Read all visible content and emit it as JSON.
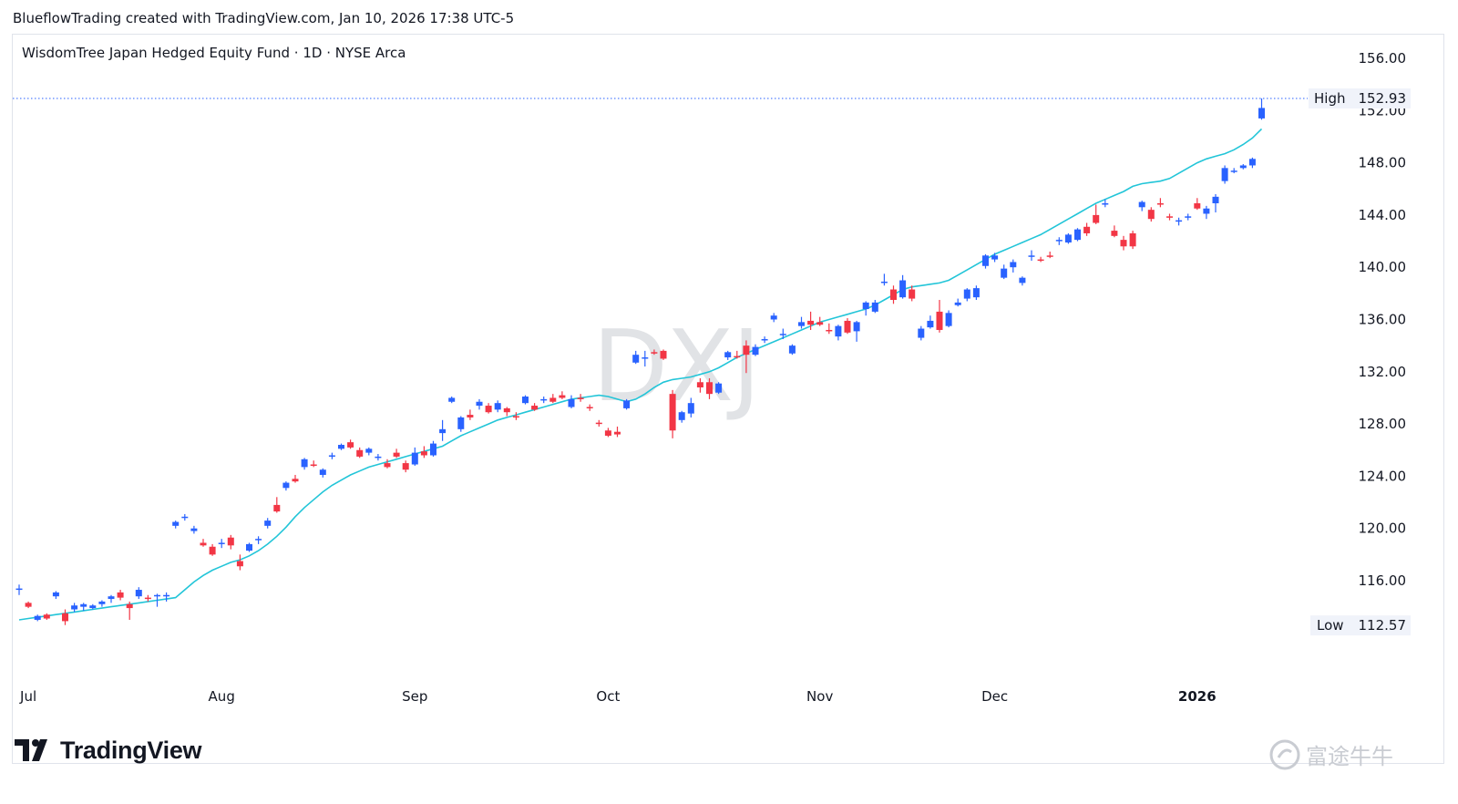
{
  "header": {
    "text": "BlueflowTrading created with TradingView.com, Jan 10, 2026 17:38 UTC-5"
  },
  "symbol": {
    "title": "WisdomTree Japan Hedged Equity Fund · 1D · NYSE Arca",
    "ticker": "DXJ"
  },
  "branding": {
    "logo_text": "TradingView",
    "watermark_text": "富途牛牛"
  },
  "colors": {
    "up": "#2962ff",
    "down": "#f23645",
    "ma": "#22c5d8",
    "grid_text": "#131722"
  },
  "chart_data": {
    "type": "candlestick",
    "title": "WisdomTree Japan Hedged Equity Fund · 1D · NYSE Arca",
    "ylim": [
      110,
      158
    ],
    "yticks": [
      116,
      120,
      124,
      128,
      132,
      136,
      140,
      144,
      148,
      152,
      156
    ],
    "ytick_labels": [
      "116.00",
      "120.00",
      "124.00",
      "128.00",
      "132.00",
      "136.00",
      "140.00",
      "144.00",
      "148.00",
      "152.00",
      "156.00"
    ],
    "xticks": [
      {
        "label": "Jul",
        "index": 1,
        "bold": false
      },
      {
        "label": "Aug",
        "index": 22,
        "bold": false
      },
      {
        "label": "Sep",
        "index": 43,
        "bold": false
      },
      {
        "label": "Oct",
        "index": 64,
        "bold": false
      },
      {
        "label": "Nov",
        "index": 87,
        "bold": false
      },
      {
        "label": "Dec",
        "index": 106,
        "bold": false
      },
      {
        "label": "2026",
        "index": 128,
        "bold": true
      }
    ],
    "high": {
      "label": "High",
      "value": "152.93",
      "price": 152.93
    },
    "low": {
      "label": "Low",
      "value": "112.57",
      "price": 112.57
    },
    "ma": [
      113.0,
      113.1,
      113.2,
      113.3,
      113.4,
      113.5,
      113.6,
      113.7,
      113.8,
      113.9,
      114.0,
      114.1,
      114.2,
      114.3,
      114.4,
      114.5,
      114.6,
      114.7,
      115.3,
      115.9,
      116.4,
      116.8,
      117.1,
      117.4,
      117.6,
      117.9,
      118.3,
      118.8,
      119.4,
      120.1,
      120.9,
      121.6,
      122.2,
      122.8,
      123.3,
      123.7,
      124.1,
      124.4,
      124.7,
      124.9,
      125.1,
      125.3,
      125.5,
      125.7,
      125.9,
      126.1,
      126.3,
      126.7,
      127.1,
      127.4,
      127.7,
      128.0,
      128.3,
      128.5,
      128.7,
      128.9,
      129.1,
      129.3,
      129.5,
      129.7,
      129.9,
      130.0,
      130.1,
      130.2,
      130.1,
      129.9,
      129.7,
      129.9,
      130.3,
      130.8,
      131.2,
      131.4,
      131.5,
      131.6,
      131.8,
      132.0,
      132.3,
      132.7,
      133.1,
      133.4,
      133.7,
      134.0,
      134.3,
      134.6,
      134.9,
      135.2,
      135.5,
      135.8,
      136.0,
      136.2,
      136.4,
      136.6,
      136.8,
      137.1,
      137.5,
      137.9,
      138.3,
      138.5,
      138.6,
      138.7,
      138.8,
      139.0,
      139.4,
      139.8,
      140.2,
      140.6,
      141.0,
      141.3,
      141.6,
      141.9,
      142.2,
      142.5,
      142.9,
      143.3,
      143.7,
      144.1,
      144.5,
      144.9,
      145.2,
      145.5,
      145.8,
      146.2,
      146.4,
      146.5,
      146.6,
      146.8,
      147.2,
      147.6,
      148.0,
      148.3,
      148.5,
      148.7,
      149.0,
      149.4,
      149.9,
      150.6
    ],
    "candles": [
      [
        115.3,
        115.7,
        114.9,
        115.4
      ],
      [
        114.3,
        114.4,
        113.9,
        114.0
      ],
      [
        113.0,
        113.4,
        112.9,
        113.3
      ],
      [
        113.4,
        113.5,
        113.0,
        113.1
      ],
      [
        114.8,
        115.2,
        114.6,
        115.1
      ],
      [
        113.5,
        113.8,
        112.6,
        112.9
      ],
      [
        113.8,
        114.3,
        113.6,
        114.1
      ],
      [
        114.0,
        114.3,
        113.7,
        114.2
      ],
      [
        113.9,
        114.2,
        113.8,
        114.1
      ],
      [
        114.2,
        114.5,
        114.0,
        114.4
      ],
      [
        114.6,
        114.9,
        114.3,
        114.8
      ],
      [
        115.1,
        115.3,
        114.5,
        114.7
      ],
      [
        114.2,
        114.4,
        113.0,
        113.9
      ],
      [
        114.8,
        115.5,
        114.6,
        115.3
      ],
      [
        114.7,
        114.9,
        114.4,
        114.6
      ],
      [
        114.8,
        115.0,
        114.0,
        114.9
      ],
      [
        114.8,
        115.1,
        114.4,
        114.9
      ],
      [
        120.2,
        120.6,
        120.0,
        120.5
      ],
      [
        120.8,
        121.1,
        120.6,
        120.9
      ],
      [
        119.8,
        120.2,
        119.6,
        120.0
      ],
      [
        118.9,
        119.2,
        118.6,
        118.7
      ],
      [
        118.6,
        118.8,
        117.9,
        118.0
      ],
      [
        118.8,
        119.2,
        118.5,
        118.9
      ],
      [
        119.3,
        119.5,
        118.4,
        118.7
      ],
      [
        117.5,
        118.0,
        116.8,
        117.1
      ],
      [
        118.3,
        118.9,
        118.2,
        118.8
      ],
      [
        119.1,
        119.4,
        118.8,
        119.2
      ],
      [
        120.2,
        120.8,
        120.0,
        120.6
      ],
      [
        121.8,
        122.4,
        121.2,
        121.3
      ],
      [
        123.1,
        123.6,
        122.9,
        123.5
      ],
      [
        123.8,
        124.1,
        123.5,
        123.6
      ],
      [
        124.7,
        125.4,
        124.5,
        125.3
      ],
      [
        124.9,
        125.2,
        124.7,
        124.8
      ],
      [
        124.1,
        124.6,
        123.9,
        124.5
      ],
      [
        125.5,
        125.8,
        125.3,
        125.6
      ],
      [
        126.1,
        126.5,
        126.0,
        126.4
      ],
      [
        126.6,
        126.8,
        126.1,
        126.2
      ],
      [
        126.0,
        126.2,
        125.4,
        125.5
      ],
      [
        125.8,
        126.2,
        125.6,
        126.1
      ],
      [
        125.4,
        125.7,
        125.2,
        125.5
      ],
      [
        125.0,
        125.3,
        124.6,
        124.7
      ],
      [
        125.8,
        126.1,
        125.4,
        125.5
      ],
      [
        125.0,
        125.2,
        124.3,
        124.5
      ],
      [
        124.9,
        126.2,
        124.8,
        125.8
      ],
      [
        125.9,
        126.3,
        125.4,
        125.6
      ],
      [
        125.6,
        126.7,
        125.5,
        126.5
      ],
      [
        127.3,
        128.3,
        126.7,
        127.6
      ],
      [
        129.7,
        130.1,
        129.6,
        130.0
      ],
      [
        127.6,
        128.6,
        127.4,
        128.5
      ],
      [
        128.7,
        129.1,
        128.3,
        128.5
      ],
      [
        129.4,
        129.9,
        129.1,
        129.7
      ],
      [
        129.4,
        129.6,
        128.8,
        128.9
      ],
      [
        129.1,
        129.8,
        128.9,
        129.6
      ],
      [
        129.2,
        129.3,
        128.6,
        128.9
      ],
      [
        128.6,
        128.9,
        128.3,
        128.5
      ],
      [
        129.6,
        130.2,
        129.5,
        130.1
      ],
      [
        129.4,
        129.6,
        129.0,
        129.1
      ],
      [
        129.8,
        130.1,
        129.6,
        129.9
      ],
      [
        130.0,
        130.3,
        129.6,
        129.7
      ],
      [
        130.2,
        130.5,
        129.9,
        130.0
      ],
      [
        129.3,
        130.2,
        129.2,
        129.9
      ],
      [
        130.0,
        130.3,
        129.7,
        129.9
      ],
      [
        129.3,
        129.5,
        129.0,
        129.2
      ],
      [
        128.1,
        128.3,
        127.8,
        128.0
      ],
      [
        127.5,
        127.7,
        127.0,
        127.1
      ],
      [
        127.4,
        127.8,
        127.0,
        127.2
      ],
      [
        129.2,
        129.9,
        129.1,
        129.8
      ],
      [
        132.7,
        133.6,
        132.6,
        133.3
      ],
      [
        133.0,
        133.6,
        132.4,
        133.1
      ],
      [
        133.5,
        133.7,
        133.3,
        133.4
      ],
      [
        133.6,
        133.7,
        132.9,
        133.0
      ],
      [
        130.3,
        130.6,
        126.9,
        127.5
      ],
      [
        128.3,
        129.0,
        128.1,
        128.9
      ],
      [
        128.8,
        130.0,
        128.5,
        129.6
      ],
      [
        131.2,
        131.5,
        130.4,
        130.8
      ],
      [
        131.2,
        131.5,
        129.9,
        130.3
      ],
      [
        130.4,
        131.2,
        130.3,
        131.1
      ],
      [
        133.1,
        133.6,
        132.9,
        133.5
      ],
      [
        133.2,
        133.6,
        133.0,
        133.1
      ],
      [
        134.0,
        134.4,
        131.9,
        133.3
      ],
      [
        133.3,
        134.1,
        133.2,
        133.9
      ],
      [
        134.5,
        134.7,
        134.2,
        134.5
      ],
      [
        136.0,
        136.5,
        135.8,
        136.3
      ],
      [
        134.8,
        135.3,
        134.5,
        134.9
      ],
      [
        133.4,
        134.1,
        133.3,
        134.0
      ],
      [
        135.5,
        136.2,
        135.3,
        135.8
      ],
      [
        135.9,
        136.6,
        135.2,
        135.6
      ],
      [
        135.8,
        136.2,
        135.5,
        135.6
      ],
      [
        135.2,
        135.7,
        134.9,
        135.1
      ],
      [
        134.7,
        135.6,
        134.4,
        135.5
      ],
      [
        135.9,
        136.1,
        134.9,
        135.0
      ],
      [
        135.1,
        135.9,
        134.3,
        135.8
      ],
      [
        136.8,
        137.4,
        136.3,
        137.3
      ],
      [
        136.6,
        137.5,
        136.5,
        137.3
      ],
      [
        138.8,
        139.5,
        138.6,
        138.9
      ],
      [
        138.3,
        138.6,
        137.2,
        137.5
      ],
      [
        137.7,
        139.4,
        137.6,
        139.0
      ],
      [
        138.3,
        138.6,
        137.4,
        137.6
      ],
      [
        134.6,
        135.5,
        134.4,
        135.3
      ],
      [
        135.4,
        136.3,
        135.3,
        135.9
      ],
      [
        136.6,
        137.5,
        135.0,
        135.2
      ],
      [
        135.5,
        136.7,
        135.4,
        136.5
      ],
      [
        137.1,
        137.6,
        137.0,
        137.3
      ],
      [
        137.6,
        138.4,
        137.4,
        138.3
      ],
      [
        137.7,
        138.6,
        137.5,
        138.4
      ],
      [
        140.1,
        141.0,
        139.9,
        140.9
      ],
      [
        140.6,
        141.1,
        140.4,
        140.9
      ],
      [
        139.2,
        140.2,
        139.1,
        139.9
      ],
      [
        140.0,
        140.6,
        139.6,
        140.4
      ],
      [
        138.8,
        139.3,
        138.6,
        139.2
      ],
      [
        140.8,
        141.3,
        140.5,
        140.9
      ],
      [
        140.6,
        140.8,
        140.4,
        140.5
      ],
      [
        140.9,
        141.2,
        140.7,
        140.8
      ],
      [
        142.0,
        142.3,
        141.7,
        142.1
      ],
      [
        141.9,
        142.6,
        141.8,
        142.5
      ],
      [
        142.1,
        143.0,
        142.0,
        142.9
      ],
      [
        143.1,
        143.4,
        142.4,
        142.6
      ],
      [
        144.0,
        144.8,
        143.3,
        143.4
      ],
      [
        144.8,
        145.2,
        144.6,
        144.9
      ],
      [
        142.8,
        143.2,
        142.3,
        142.4
      ],
      [
        142.1,
        142.4,
        141.3,
        141.6
      ],
      [
        142.6,
        142.8,
        141.4,
        141.6
      ],
      [
        144.6,
        145.1,
        144.3,
        145.0
      ],
      [
        144.4,
        144.6,
        143.5,
        143.7
      ],
      [
        144.9,
        145.3,
        144.6,
        144.8
      ],
      [
        143.9,
        144.1,
        143.6,
        143.8
      ],
      [
        143.5,
        143.8,
        143.2,
        143.6
      ],
      [
        143.8,
        144.1,
        143.6,
        143.9
      ],
      [
        144.9,
        145.3,
        144.4,
        144.5
      ],
      [
        144.1,
        144.7,
        143.7,
        144.5
      ],
      [
        144.9,
        145.6,
        144.2,
        145.4
      ],
      [
        146.6,
        147.8,
        146.4,
        147.6
      ],
      [
        147.3,
        147.6,
        147.2,
        147.4
      ],
      [
        147.6,
        147.9,
        147.5,
        147.8
      ],
      [
        147.8,
        148.4,
        147.6,
        148.3
      ],
      [
        151.4,
        152.93,
        151.3,
        152.2
      ]
    ]
  }
}
